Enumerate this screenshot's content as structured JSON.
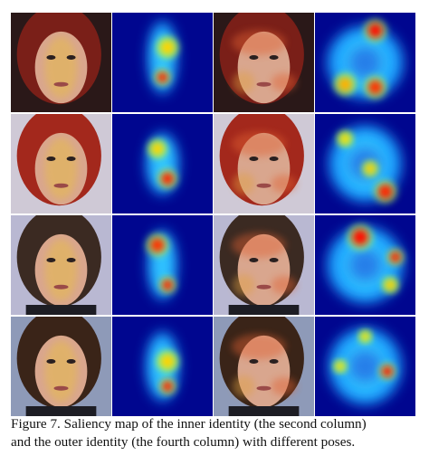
{
  "caption": {
    "lines": [
      "Figure 7.  Saliency map of the inner identity (the second column)",
      "and the outer identity (the fourth column) with different poses."
    ]
  }
}
